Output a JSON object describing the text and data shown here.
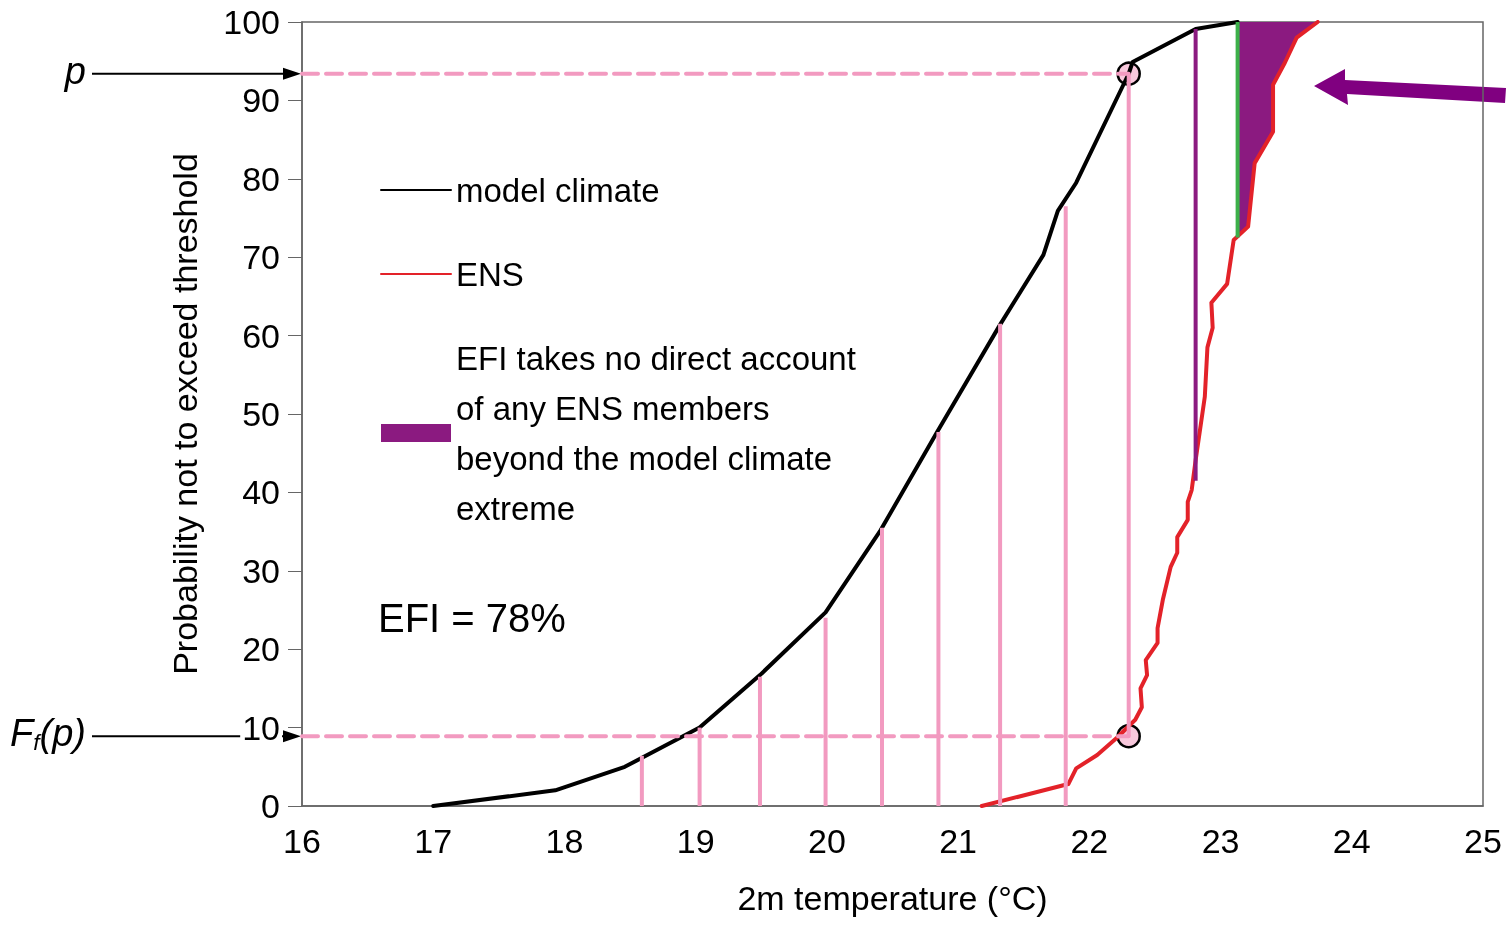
{
  "chart_data": {
    "type": "line",
    "xlabel": "2m temperature (°C)",
    "ylabel": "Probability not to exceed threshold",
    "xlim": [
      16,
      25
    ],
    "xticks": [
      16,
      17,
      18,
      19,
      20,
      21,
      22,
      23,
      24,
      25
    ],
    "ylim": [
      0,
      100
    ],
    "yticks": [
      0,
      10,
      20,
      30,
      40,
      50,
      60,
      70,
      80,
      90,
      100
    ],
    "grid": false,
    "legend": "left",
    "series": [
      {
        "name": "model climate",
        "color": "#000000",
        "marker": "none",
        "line_style": "solid",
        "x": [
          17,
          17.93,
          18.46,
          19.03,
          19.49,
          19.99,
          20.41,
          20.84,
          21.32,
          21.65,
          21.76,
          21.9,
          22.3,
          22.33,
          22.81,
          23.13
        ],
        "values": [
          0,
          2,
          5,
          10,
          16.7,
          24.7,
          35.2,
          47.7,
          61.4,
          70.3,
          75.9,
          79.5,
          93.4,
          94.9,
          99.1,
          100
        ]
      },
      {
        "name": "ENS",
        "color": "#e32229",
        "marker": "none",
        "line_style": "solid",
        "x": [
          21.18,
          21.84,
          21.9,
          22.06,
          22.21,
          22.35,
          22.4,
          22.39,
          22.44,
          22.43,
          22.52,
          22.52,
          22.56,
          22.62,
          22.67,
          22.67,
          22.75,
          22.75,
          22.78,
          22.81,
          22.88,
          22.9,
          22.94,
          22.93,
          23.05,
          23.1,
          23.21,
          23.26,
          23.4,
          23.4,
          23.49,
          23.58,
          23.74
        ],
        "values": [
          0,
          2.8,
          4.8,
          6.5,
          8.7,
          11,
          12.6,
          15,
          16.7,
          18.6,
          20.8,
          22.7,
          26.3,
          30.5,
          32.3,
          34.3,
          36.5,
          38.8,
          40.3,
          44.1,
          52.2,
          58.5,
          61,
          64.2,
          66.6,
          72.2,
          73.9,
          82,
          86,
          92,
          94.8,
          98,
          100
        ]
      },
      {
        "name": "EFI takes no direct account of any ENS members beyond the model climate extreme",
        "type": "area",
        "color": "#8b1a80",
        "x": [
          23.13,
          23.13,
          23.21,
          23.26,
          23.4,
          23.4,
          23.49,
          23.58,
          23.74
        ],
        "values": [
          100,
          72.5,
          73.9,
          82,
          86,
          92,
          94.8,
          98,
          100
        ]
      },
      {
        "type": "bar",
        "color": "#f29ac0",
        "x": [
          18.59,
          19.03,
          19.49,
          19.99,
          20.42,
          20.85,
          21.32,
          21.82,
          22.3
        ],
        "base": [
          0,
          0,
          0,
          0,
          0,
          0,
          0,
          0,
          8.9
        ],
        "values": [
          6.4,
          10,
          16.5,
          24,
          35.5,
          47.7,
          61.5,
          76.5,
          84.5
        ]
      },
      {
        "type": "bar",
        "color": "#8b1a80",
        "x": [
          22.81
        ],
        "base": [
          41.5
        ],
        "values": [
          57.6
        ]
      },
      {
        "type": "bar",
        "color": "#3cb04a",
        "x": [
          23.13
        ],
        "base": [
          72.5
        ],
        "values": [
          27.5
        ]
      },
      {
        "type": "line",
        "color": "#f29ac0",
        "marker": "none",
        "line_style": "dashed",
        "x": [
          16,
          22.3
        ],
        "values": [
          93.4,
          93.4
        ]
      },
      {
        "type": "line",
        "color": "#f29ac0",
        "marker": "none",
        "line_style": "dashed",
        "x": [
          16,
          22.3
        ],
        "values": [
          8.9,
          8.9
        ]
      },
      {
        "type": "scatter",
        "color": "#f8c8dc",
        "marker": "circle",
        "x": [
          22.3,
          22.3
        ],
        "values": [
          93.4,
          8.9
        ]
      }
    ],
    "annotations": [
      "p",
      "F$_{f}$(p)",
      "EFI = 78%"
    ]
  }
}
